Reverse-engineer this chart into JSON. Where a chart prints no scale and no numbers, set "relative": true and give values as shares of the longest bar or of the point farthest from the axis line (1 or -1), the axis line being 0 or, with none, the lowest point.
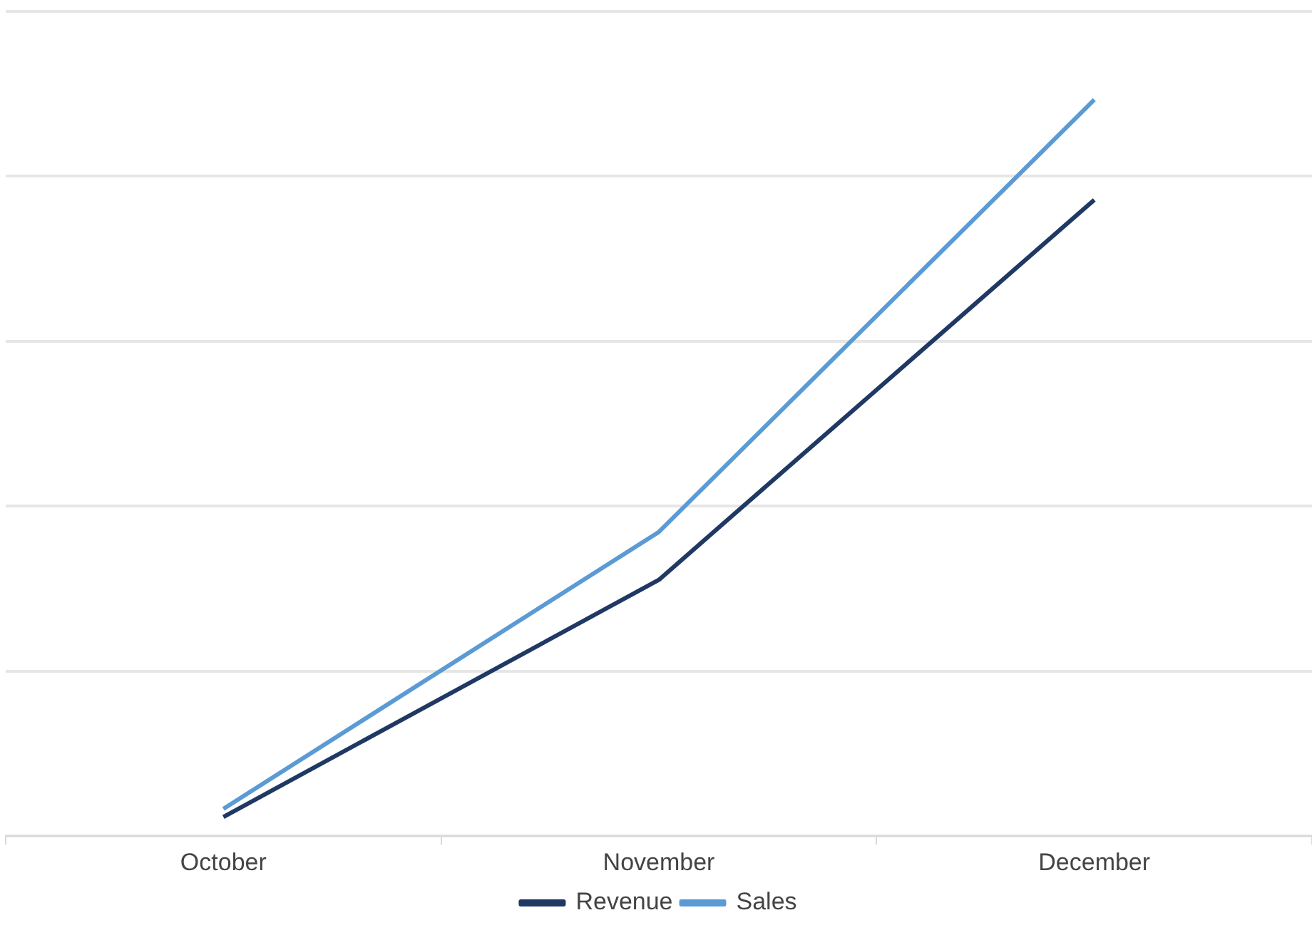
{
  "chart_data": {
    "type": "line",
    "relative": true,
    "categories": [
      "October",
      "November",
      "December"
    ],
    "series": [
      {
        "name": "Revenue",
        "color": "#1f3864",
        "values": [
          0.026,
          0.348,
          0.864
        ]
      },
      {
        "name": "Sales",
        "color": "#5b9bd5",
        "values": [
          0.037,
          0.413,
          1
        ]
      }
    ],
    "grid": "y",
    "legend": "bottom",
    "marker": "none"
  }
}
